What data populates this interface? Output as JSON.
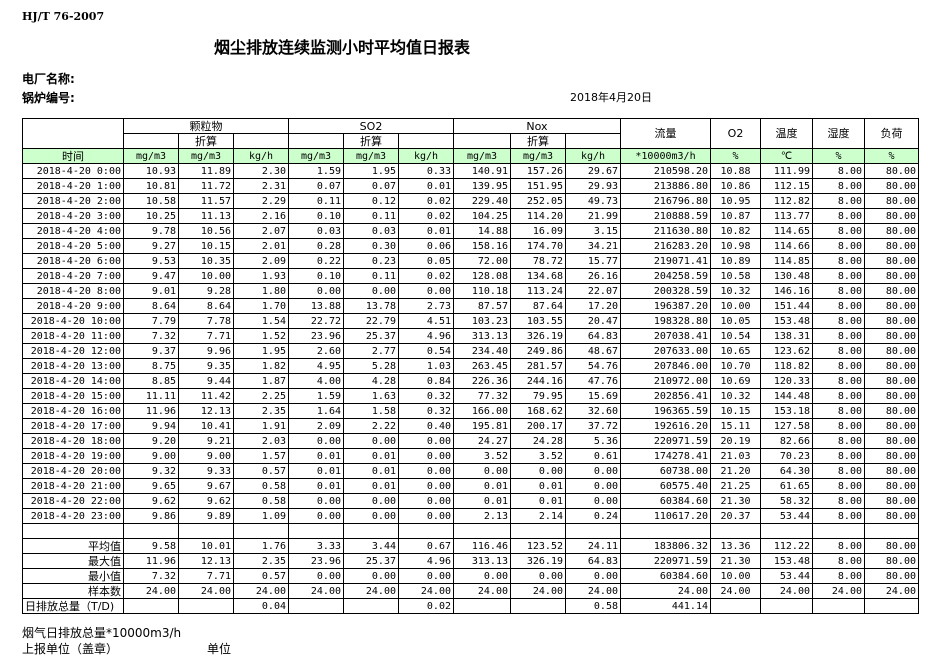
{
  "standard": "HJ/T  76-2007",
  "title": "烟尘排放连续监测小时平均值日报表",
  "plant_label": "电厂名称:",
  "boiler_label": "锅炉编号:",
  "date": "2018年4月20日",
  "header": {
    "groups": [
      "颗粒物",
      "SO2",
      "Nox"
    ],
    "converted": "折算",
    "single": [
      "流量",
      "O2",
      "温度",
      "湿度",
      "负荷"
    ],
    "units": [
      "时间",
      "mg/m3",
      "mg/m3",
      "kg/h",
      "mg/m3",
      "mg/m3",
      "kg/h",
      "mg/m3",
      "mg/m3",
      "kg/h",
      "*10000m3/h",
      "%",
      "℃",
      "%",
      "%"
    ]
  },
  "rows": [
    [
      "2018-4-20 0:00",
      "10.93",
      "11.89",
      "2.30",
      "1.59",
      "1.95",
      "0.33",
      "140.91",
      "157.26",
      "29.67",
      "210598.20",
      "10.88",
      "111.99",
      "8.00",
      "80.00"
    ],
    [
      "2018-4-20 1:00",
      "10.81",
      "11.72",
      "2.31",
      "0.07",
      "0.07",
      "0.01",
      "139.95",
      "151.95",
      "29.93",
      "213886.80",
      "10.86",
      "112.15",
      "8.00",
      "80.00"
    ],
    [
      "2018-4-20 2:00",
      "10.58",
      "11.57",
      "2.29",
      "0.11",
      "0.12",
      "0.02",
      "229.40",
      "252.05",
      "49.73",
      "216796.80",
      "10.95",
      "112.82",
      "8.00",
      "80.00"
    ],
    [
      "2018-4-20 3:00",
      "10.25",
      "11.13",
      "2.16",
      "0.10",
      "0.11",
      "0.02",
      "104.25",
      "114.20",
      "21.99",
      "210888.59",
      "10.87",
      "113.77",
      "8.00",
      "80.00"
    ],
    [
      "2018-4-20 4:00",
      "9.78",
      "10.56",
      "2.07",
      "0.03",
      "0.03",
      "0.01",
      "14.88",
      "16.09",
      "3.15",
      "211630.80",
      "10.82",
      "114.65",
      "8.00",
      "80.00"
    ],
    [
      "2018-4-20 5:00",
      "9.27",
      "10.15",
      "2.01",
      "0.28",
      "0.30",
      "0.06",
      "158.16",
      "174.70",
      "34.21",
      "216283.20",
      "10.98",
      "114.66",
      "8.00",
      "80.00"
    ],
    [
      "2018-4-20 6:00",
      "9.53",
      "10.35",
      "2.09",
      "0.22",
      "0.23",
      "0.05",
      "72.00",
      "78.72",
      "15.77",
      "219071.41",
      "10.89",
      "114.85",
      "8.00",
      "80.00"
    ],
    [
      "2018-4-20 7:00",
      "9.47",
      "10.00",
      "1.93",
      "0.10",
      "0.11",
      "0.02",
      "128.08",
      "134.68",
      "26.16",
      "204258.59",
      "10.58",
      "130.48",
      "8.00",
      "80.00"
    ],
    [
      "2018-4-20 8:00",
      "9.01",
      "9.28",
      "1.80",
      "0.00",
      "0.00",
      "0.00",
      "110.18",
      "113.24",
      "22.07",
      "200328.59",
      "10.32",
      "146.16",
      "8.00",
      "80.00"
    ],
    [
      "2018-4-20 9:00",
      "8.64",
      "8.64",
      "1.70",
      "13.88",
      "13.78",
      "2.73",
      "87.57",
      "87.64",
      "17.20",
      "196387.20",
      "10.00",
      "151.44",
      "8.00",
      "80.00"
    ],
    [
      "2018-4-20 10:00",
      "7.79",
      "7.78",
      "1.54",
      "22.72",
      "22.79",
      "4.51",
      "103.23",
      "103.55",
      "20.47",
      "198328.80",
      "10.05",
      "153.48",
      "8.00",
      "80.00"
    ],
    [
      "2018-4-20 11:00",
      "7.32",
      "7.71",
      "1.52",
      "23.96",
      "25.37",
      "4.96",
      "313.13",
      "326.19",
      "64.83",
      "207038.41",
      "10.54",
      "138.31",
      "8.00",
      "80.00"
    ],
    [
      "2018-4-20 12:00",
      "9.37",
      "9.96",
      "1.95",
      "2.60",
      "2.77",
      "0.54",
      "234.40",
      "249.86",
      "48.67",
      "207633.00",
      "10.65",
      "123.62",
      "8.00",
      "80.00"
    ],
    [
      "2018-4-20 13:00",
      "8.75",
      "9.35",
      "1.82",
      "4.95",
      "5.28",
      "1.03",
      "263.45",
      "281.57",
      "54.76",
      "207846.00",
      "10.70",
      "118.82",
      "8.00",
      "80.00"
    ],
    [
      "2018-4-20 14:00",
      "8.85",
      "9.44",
      "1.87",
      "4.00",
      "4.28",
      "0.84",
      "226.36",
      "244.16",
      "47.76",
      "210972.00",
      "10.69",
      "120.33",
      "8.00",
      "80.00"
    ],
    [
      "2018-4-20 15:00",
      "11.11",
      "11.42",
      "2.25",
      "1.59",
      "1.63",
      "0.32",
      "77.32",
      "79.95",
      "15.69",
      "202856.41",
      "10.32",
      "144.48",
      "8.00",
      "80.00"
    ],
    [
      "2018-4-20 16:00",
      "11.96",
      "12.13",
      "2.35",
      "1.64",
      "1.58",
      "0.32",
      "166.00",
      "168.62",
      "32.60",
      "196365.59",
      "10.15",
      "153.18",
      "8.00",
      "80.00"
    ],
    [
      "2018-4-20 17:00",
      "9.94",
      "10.41",
      "1.91",
      "2.09",
      "2.22",
      "0.40",
      "195.81",
      "200.17",
      "37.72",
      "192616.20",
      "15.11",
      "127.58",
      "8.00",
      "80.00"
    ],
    [
      "2018-4-20 18:00",
      "9.20",
      "9.21",
      "2.03",
      "0.00",
      "0.00",
      "0.00",
      "24.27",
      "24.28",
      "5.36",
      "220971.59",
      "20.19",
      "82.66",
      "8.00",
      "80.00"
    ],
    [
      "2018-4-20 19:00",
      "9.00",
      "9.00",
      "1.57",
      "0.01",
      "0.01",
      "0.00",
      "3.52",
      "3.52",
      "0.61",
      "174278.41",
      "21.03",
      "70.23",
      "8.00",
      "80.00"
    ],
    [
      "2018-4-20 20:00",
      "9.32",
      "9.33",
      "0.57",
      "0.01",
      "0.01",
      "0.00",
      "0.00",
      "0.00",
      "0.00",
      "60738.00",
      "21.20",
      "64.30",
      "8.00",
      "80.00"
    ],
    [
      "2018-4-20 21:00",
      "9.65",
      "9.67",
      "0.58",
      "0.01",
      "0.01",
      "0.00",
      "0.01",
      "0.01",
      "0.00",
      "60575.40",
      "21.25",
      "61.65",
      "8.00",
      "80.00"
    ],
    [
      "2018-4-20 22:00",
      "9.62",
      "9.62",
      "0.58",
      "0.00",
      "0.00",
      "0.00",
      "0.01",
      "0.01",
      "0.00",
      "60384.60",
      "21.30",
      "58.32",
      "8.00",
      "80.00"
    ],
    [
      "2018-4-20 23:00",
      "9.86",
      "9.89",
      "1.09",
      "0.00",
      "0.00",
      "0.00",
      "2.13",
      "2.14",
      "0.24",
      "110617.20",
      "20.37",
      "53.44",
      "8.00",
      "80.00"
    ]
  ],
  "stats": [
    [
      "平均值",
      "9.58",
      "10.01",
      "1.76",
      "3.33",
      "3.44",
      "0.67",
      "116.46",
      "123.52",
      "24.11",
      "183806.32",
      "13.36",
      "112.22",
      "8.00",
      "80.00"
    ],
    [
      "最大值",
      "11.96",
      "12.13",
      "2.35",
      "23.96",
      "25.37",
      "4.96",
      "313.13",
      "326.19",
      "64.83",
      "220971.59",
      "21.30",
      "153.48",
      "8.00",
      "80.00"
    ],
    [
      "最小值",
      "7.32",
      "7.71",
      "0.57",
      "0.00",
      "0.00",
      "0.00",
      "0.00",
      "0.00",
      "0.00",
      "60384.60",
      "10.00",
      "53.44",
      "8.00",
      "80.00"
    ],
    [
      "样本数",
      "24.00",
      "24.00",
      "24.00",
      "24.00",
      "24.00",
      "24.00",
      "24.00",
      "24.00",
      "24.00",
      "24.00",
      "24.00",
      "24.00",
      "24.00",
      "24.00"
    ]
  ],
  "daily_total": [
    "日排放总量（T/D)",
    "",
    "",
    "0.04",
    "",
    "",
    "0.02",
    "",
    "",
    "0.58",
    "441.14",
    "",
    "",
    "",
    ""
  ],
  "footer": {
    "flue_gas_total": "烟气日排放总量*10000m3/h",
    "reporting_unit": "上报单位（盖章）",
    "unit": "单位"
  }
}
